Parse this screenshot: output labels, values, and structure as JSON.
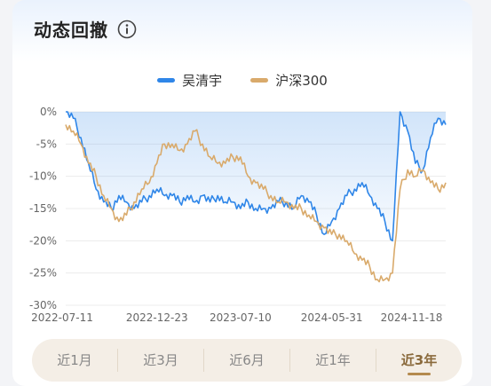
{
  "header": {
    "title": "动态回撤",
    "info_icon": "info-icon"
  },
  "legend": [
    {
      "name": "吴清宇",
      "color": "#2f86e8"
    },
    {
      "name": "沪深300",
      "color": "#d9aa6b"
    }
  ],
  "periods": [
    {
      "label": "近1月",
      "active": false
    },
    {
      "label": "近3月",
      "active": false
    },
    {
      "label": "近6月",
      "active": false
    },
    {
      "label": "近1年",
      "active": false
    },
    {
      "label": "近3年",
      "active": true
    }
  ],
  "chart_data": {
    "type": "area",
    "x_tick_labels": [
      "2022-07-11",
      "2022-12-23",
      "2023-07-10",
      "2024-05-31",
      "2024-11-18"
    ],
    "y_tick_labels": [
      "0%",
      "-5%",
      "-10%",
      "-15%",
      "-20%",
      "-25%",
      "-30%"
    ],
    "ylim": [
      -30,
      0
    ],
    "x_index_range": [
      0,
      100
    ],
    "grid": true,
    "legend_position": "top-center",
    "series": [
      {
        "name": "吴清宇",
        "color": "#2f86e8",
        "fill": true,
        "x": [
          0,
          2,
          4,
          6,
          8,
          10,
          12,
          14,
          16,
          18,
          20,
          22,
          24,
          26,
          28,
          30,
          32,
          34,
          36,
          38,
          40,
          42,
          44,
          46,
          48,
          50,
          52,
          54,
          56,
          58,
          60,
          62,
          64,
          66,
          68,
          70,
          72,
          74,
          76,
          78,
          80,
          82,
          84,
          86,
          88,
          90,
          92,
          94,
          96,
          98,
          100
        ],
        "values": [
          0,
          -1,
          -4,
          -8,
          -12,
          -14,
          -15,
          -13,
          -14,
          -15,
          -14,
          -13,
          -12,
          -13,
          -13,
          -14,
          -13,
          -14,
          -13,
          -14,
          -13,
          -14,
          -14,
          -15,
          -14,
          -15,
          -15,
          -15,
          -14,
          -14,
          -15,
          -13,
          -14,
          -16,
          -19,
          -17,
          -15,
          -13,
          -12,
          -11,
          -13,
          -15,
          -17,
          -20,
          0,
          -3,
          -8,
          -9,
          -4,
          -1,
          -2
        ]
      },
      {
        "name": "沪深300",
        "color": "#d9aa6b",
        "fill": false,
        "x": [
          0,
          2,
          4,
          6,
          8,
          10,
          12,
          14,
          16,
          18,
          20,
          22,
          24,
          26,
          28,
          30,
          32,
          34,
          36,
          38,
          40,
          42,
          44,
          46,
          48,
          50,
          52,
          54,
          56,
          58,
          60,
          62,
          64,
          66,
          68,
          70,
          72,
          74,
          76,
          78,
          80,
          82,
          84,
          86,
          88,
          90,
          92,
          94,
          96,
          98,
          100
        ],
        "values": [
          -2,
          -3,
          -5,
          -8,
          -10,
          -13,
          -15,
          -17,
          -16,
          -14,
          -12,
          -11,
          -8,
          -5,
          -5,
          -6,
          -5,
          -3,
          -5,
          -7,
          -8,
          -8,
          -7,
          -7,
          -10,
          -11,
          -12,
          -13,
          -14,
          -14,
          -15,
          -15,
          -16,
          -17,
          -18,
          -19,
          -19,
          -20,
          -22,
          -23,
          -24,
          -26,
          -26,
          -25,
          -12,
          -9,
          -10,
          -9,
          -11,
          -12,
          -11
        ]
      }
    ]
  }
}
